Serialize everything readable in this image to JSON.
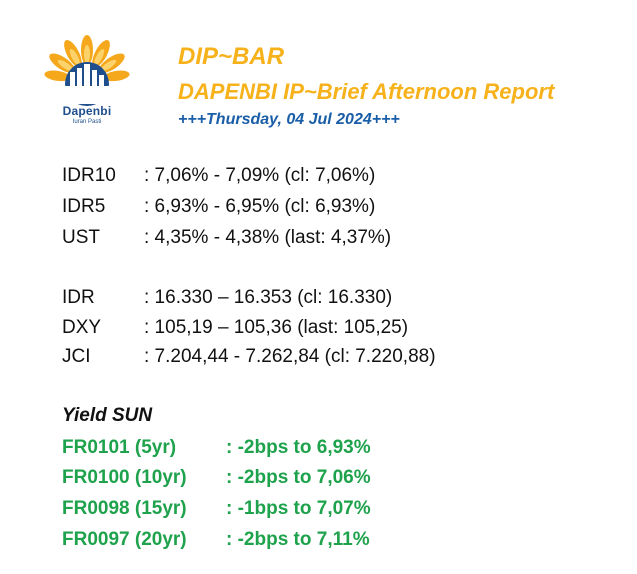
{
  "header": {
    "logo_name": "Dapenbi",
    "logo_tagline": "Iuran Pasti",
    "title": "DIP~BAR",
    "subtitle": "DAPENBI IP~Brief Afternoon Report",
    "date": "+++Thursday, 04 Jul 2024+++"
  },
  "bonds": [
    {
      "label": "IDR10",
      "value": ": 7,06% - 7,09% (cl: 7,06%)"
    },
    {
      "label": "IDR5",
      "value": ": 6,93% - 6,95% (cl: 6,93%)"
    },
    {
      "label": "UST",
      "value": ": 4,35% - 4,38% (last: 4,37%)"
    }
  ],
  "markets": [
    {
      "label": "IDR",
      "value": ": 16.330 – 16.353 (cl: 16.330)"
    },
    {
      "label": "DXY",
      "value": ": 105,19 – 105,36 (last: 105,25)"
    },
    {
      "label": "JCI",
      "value": ": 7.204,44 - 7.262,84 (cl: 7.220,88)"
    }
  ],
  "yield_sun": {
    "title": "Yield SUN",
    "items": [
      {
        "label": "FR0101 (5yr)",
        "value": ": -2bps to 6,93%"
      },
      {
        "label": "FR0100 (10yr)",
        "value": ": -2bps to 7,06%"
      },
      {
        "label": "FR0098 (15yr)",
        "value": ": -1bps to 7,07%"
      },
      {
        "label": "FR0097 (20yr)",
        "value": ": -2bps to 7,11%"
      }
    ]
  },
  "colors": {
    "accent_orange": "#f7b21b",
    "date_blue": "#1b5ea8",
    "yield_green": "#1ea24c",
    "logo_blue": "#1f4e8c"
  },
  "icons": [
    "dapenbi-logo"
  ]
}
